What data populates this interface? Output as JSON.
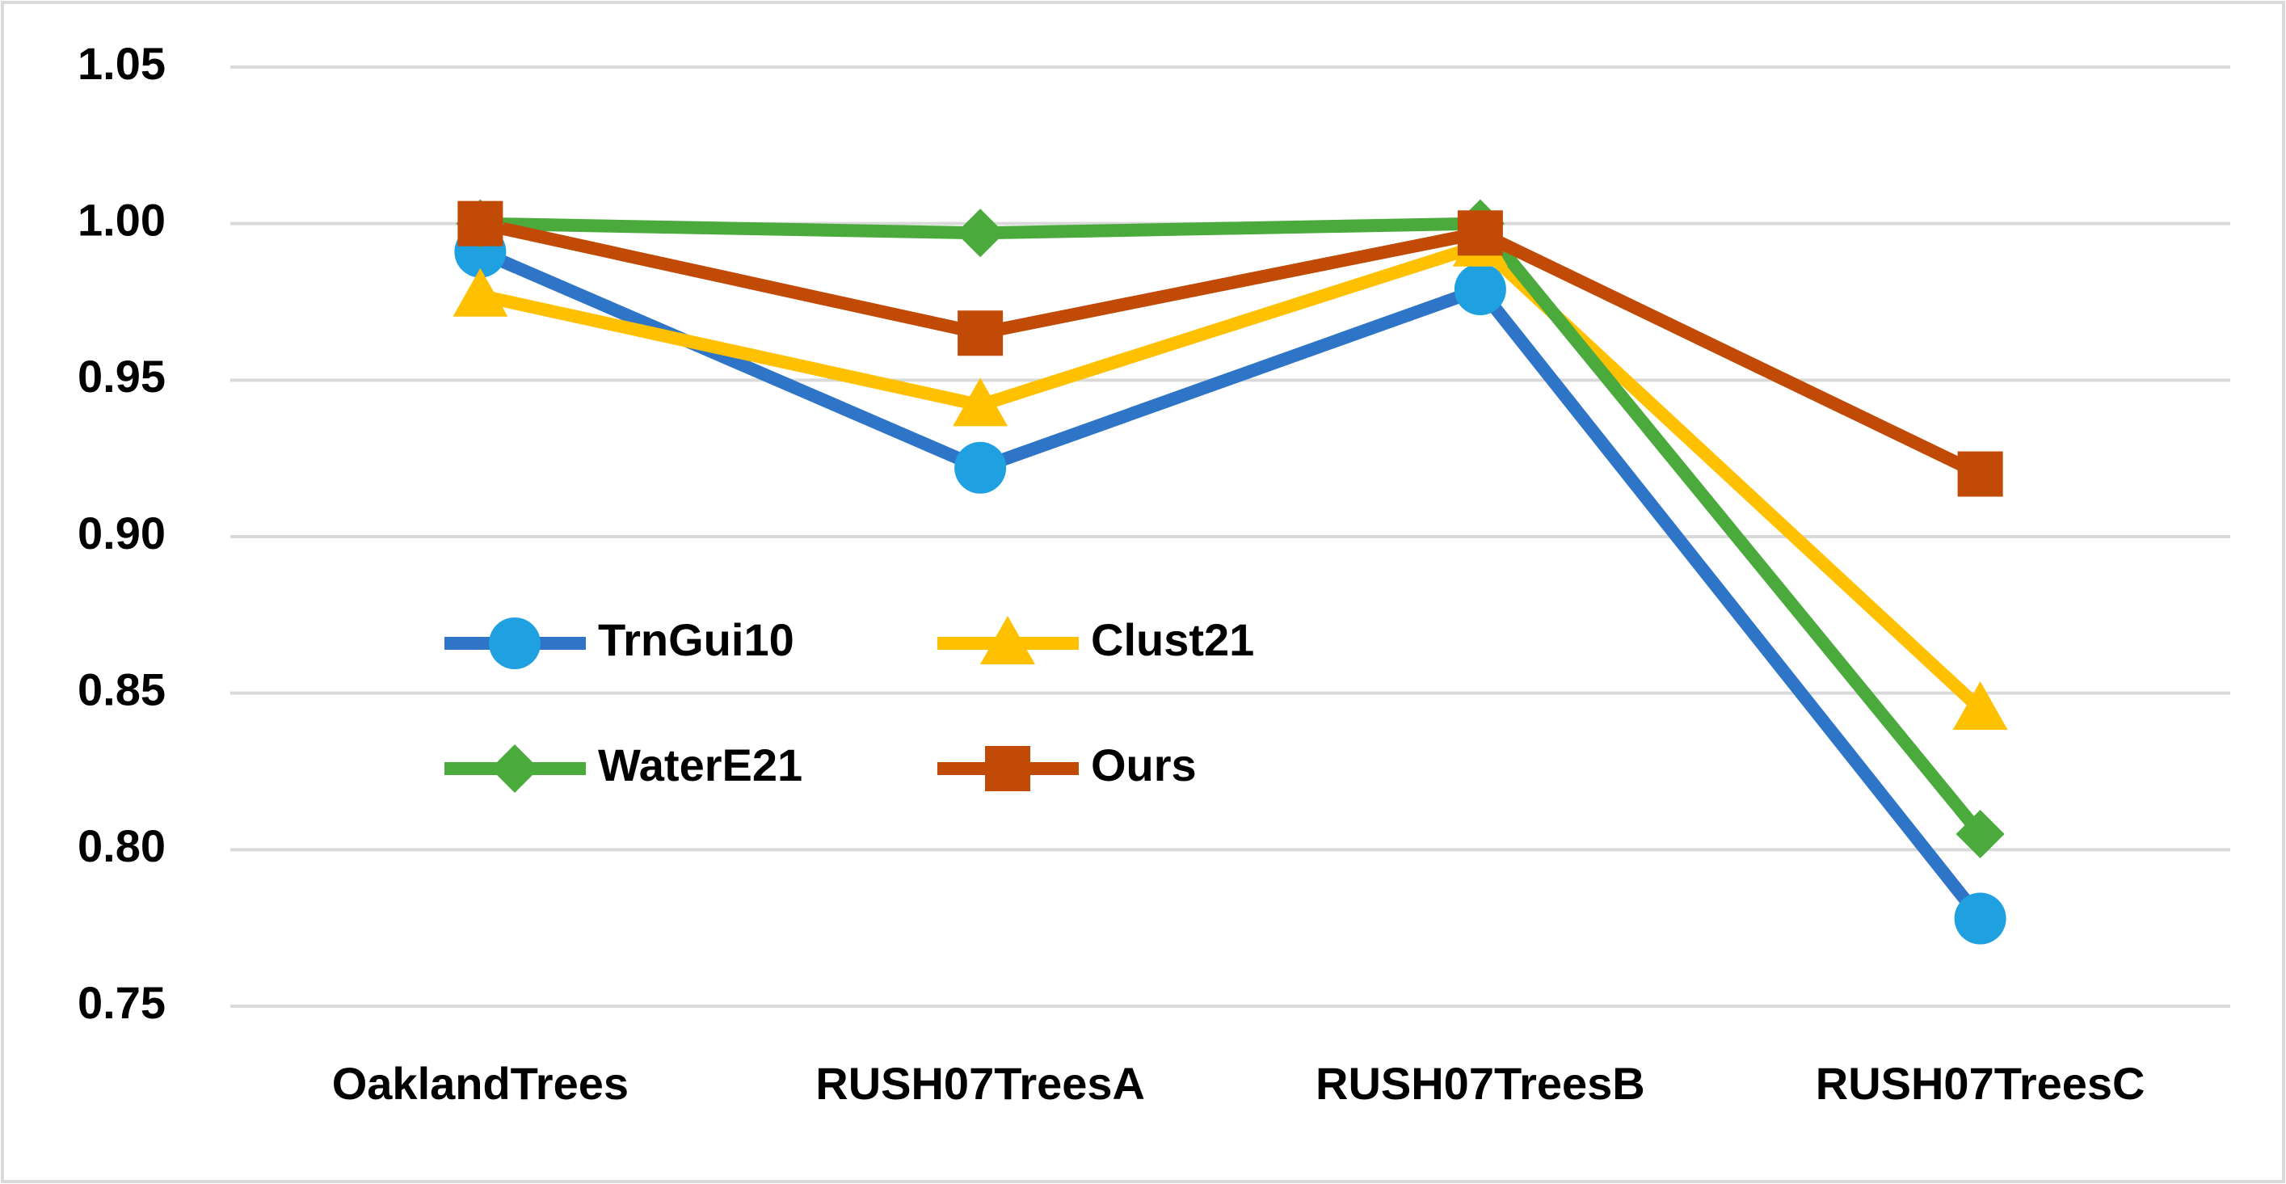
{
  "chart_data": {
    "type": "line",
    "categories": [
      "OaklandTrees",
      "RUSH07TreesA",
      "RUSH07TreesB",
      "RUSH07TreesC"
    ],
    "series": [
      {
        "name": "TrnGui10",
        "color": "#2e75c8",
        "marker_color": "#1fa0e0",
        "marker": "circle",
        "values": [
          0.991,
          0.922,
          0.979,
          0.778
        ]
      },
      {
        "name": "Clust21",
        "color": "#ffc000",
        "marker_color": "#ffc000",
        "marker": "triangle",
        "values": [
          0.977,
          0.942,
          0.993,
          0.845
        ]
      },
      {
        "name": "WaterE21",
        "color": "#4aab3c",
        "marker_color": "#4aab3c",
        "marker": "diamond",
        "values": [
          1.0,
          0.997,
          1.0,
          0.805
        ]
      },
      {
        "name": "Ours",
        "color": "#c04a06",
        "marker_color": "#c04a06",
        "marker": "square",
        "values": [
          1.0,
          0.965,
          0.997,
          0.92
        ]
      }
    ],
    "ylim": [
      0.75,
      1.05
    ],
    "yticks": [
      0.75,
      {
        "value": 0.8,
        "label": "0.80"
      },
      0.85,
      {
        "value": 0.9,
        "label": "0.90"
      },
      0.95,
      {
        "value": 1.0,
        "label": "1.00"
      },
      1.05
    ],
    "grid": true,
    "legend": "middle-left"
  }
}
